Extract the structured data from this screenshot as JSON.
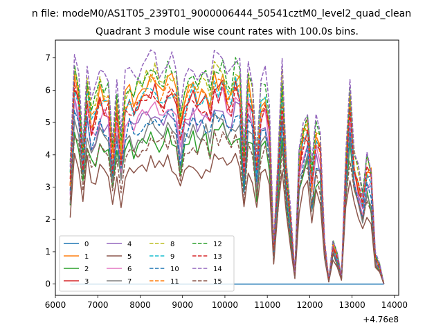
{
  "chart_data": {
    "type": "line",
    "suptitle": "n file: modeM0/AS1T05_239T01_9000006444_50541cztM0_level2_quad_clean",
    "title": "Quadrant 3 module wise count rates with 100.0s bins.",
    "xlabel": "",
    "ylabel": "",
    "x_offset_label": "+4.76e8",
    "xlim": [
      6000,
      14100
    ],
    "ylim": [
      -0.35,
      7.55
    ],
    "xticks": [
      6000,
      7000,
      8000,
      9000,
      10000,
      11000,
      12000,
      13000,
      14000
    ],
    "xtick_labels": [
      "6000",
      "7000",
      "8000",
      "9000",
      "10000",
      "11000",
      "12000",
      "13000",
      "14000"
    ],
    "yticks": [
      0,
      1,
      2,
      3,
      4,
      5,
      6,
      7
    ],
    "ytick_labels": [
      "0",
      "1",
      "2",
      "3",
      "4",
      "5",
      "6",
      "7"
    ],
    "legend_placement": "lower-left",
    "legend_columns": 4,
    "x": [
      6350,
      6450,
      6550,
      6650,
      6750,
      6850,
      6950,
      7050,
      7150,
      7250,
      7350,
      7450,
      7550,
      7650,
      7750,
      7850,
      7950,
      8050,
      8150,
      8250,
      8350,
      8450,
      8550,
      8650,
      8750,
      8850,
      8950,
      9050,
      9150,
      9250,
      9350,
      9450,
      9550,
      9650,
      9750,
      9850,
      9950,
      10050,
      10150,
      10250,
      10350,
      10450,
      10550,
      10650,
      10750,
      10850,
      10950,
      11050,
      11150,
      11250,
      11350,
      11450,
      11550,
      11650,
      11750,
      11850,
      11950,
      12050,
      12150,
      12250,
      12350,
      12450,
      12550,
      12650,
      12750,
      12850,
      12950,
      13050,
      13150,
      13250,
      13350,
      13450,
      13550,
      13650,
      13750
    ],
    "base_profile": [
      3.0,
      5.9,
      5.3,
      3.7,
      5.6,
      4.6,
      4.9,
      5.4,
      5.3,
      5.2,
      3.5,
      5.0,
      3.8,
      5.2,
      5.4,
      5.1,
      5.3,
      5.3,
      5.6,
      5.7,
      5.8,
      5.4,
      5.5,
      5.7,
      5.7,
      5.5,
      4.4,
      5.2,
      5.4,
      5.6,
      5.3,
      5.4,
      5.5,
      5.1,
      5.9,
      5.7,
      5.9,
      5.4,
      5.3,
      5.8,
      5.6,
      3.4,
      5.6,
      5.1,
      3.3,
      5.1,
      5.3,
      4.5,
      1.0,
      3.2,
      5.6,
      3.2,
      1.8,
      0.3,
      3.5,
      4.2,
      4.5,
      2.9,
      4.1,
      3.9,
      1.2,
      0.1,
      1.1,
      0.8,
      0.2,
      3.2,
      5.2,
      3.5,
      2.9,
      2.3,
      3.3,
      3.0,
      0.8,
      0.5,
      0.0
    ],
    "series": [
      {
        "name": "0",
        "color": "#1f77b4",
        "dash": "solid",
        "scale": 0,
        "offset": 0
      },
      {
        "name": "1",
        "color": "#ff7f0e",
        "dash": "solid",
        "scale": 1.1,
        "offset": 0
      },
      {
        "name": "2",
        "color": "#2ca02c",
        "dash": "solid",
        "scale": 0.8,
        "offset": 0
      },
      {
        "name": "3",
        "color": "#d62728",
        "dash": "solid",
        "scale": 1.04,
        "offset": 0
      },
      {
        "name": "4",
        "color": "#9467bd",
        "dash": "solid",
        "scale": 0.94,
        "offset": 0
      },
      {
        "name": "5",
        "color": "#8c564b",
        "dash": "solid",
        "scale": 0.66,
        "offset": 0
      },
      {
        "name": "6",
        "color": "#e377c2",
        "dash": "solid",
        "scale": 0.98,
        "offset": 0
      },
      {
        "name": "7",
        "color": "#7f7f7f",
        "dash": "solid",
        "scale": 0.86,
        "offset": 0
      },
      {
        "name": "8",
        "color": "#bcbd22",
        "dash": "dashed",
        "scale": 1.14,
        "offset": 0
      },
      {
        "name": "9",
        "color": "#17becf",
        "dash": "dashed",
        "scale": 1.06,
        "offset": 0
      },
      {
        "name": "10",
        "color": "#1f77b4",
        "dash": "dashed",
        "scale": 0.9,
        "offset": 0
      },
      {
        "name": "11",
        "color": "#ff7f0e",
        "dash": "dashed",
        "scale": 1.08,
        "offset": 0
      },
      {
        "name": "12",
        "color": "#2ca02c",
        "dash": "dashed",
        "scale": 1.16,
        "offset": 0
      },
      {
        "name": "13",
        "color": "#d62728",
        "dash": "dashed",
        "scale": 1.02,
        "offset": 0
      },
      {
        "name": "14",
        "color": "#9467bd",
        "dash": "dashed",
        "scale": 1.22,
        "offset": 0
      },
      {
        "name": "15",
        "color": "#8c564b",
        "dash": "dashed",
        "scale": 0.78,
        "offset": 0
      }
    ]
  }
}
